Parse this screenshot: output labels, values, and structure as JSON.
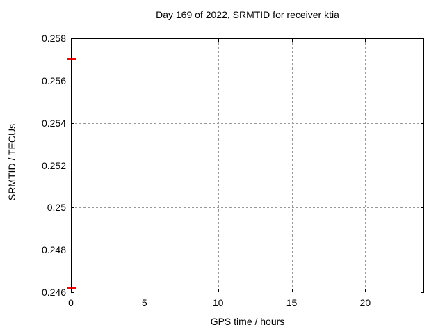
{
  "chart_data": {
    "type": "scatter",
    "title": "Day 169 of 2022, SRMTID for receiver ktia",
    "xlabel": "GPS time / hours",
    "ylabel": "SRMTID / TECUs",
    "xlim": [
      0,
      24
    ],
    "ylim": [
      0.246,
      0.258
    ],
    "xticks": {
      "values": [
        0,
        5,
        10,
        15,
        20
      ],
      "labels": [
        "0",
        "5",
        "10",
        "15",
        "20"
      ]
    },
    "yticks": {
      "values": [
        0.246,
        0.248,
        0.25,
        0.252,
        0.254,
        0.256,
        0.258
      ],
      "labels": [
        "0.246",
        "0.248",
        "0.25",
        "0.252",
        "0.254",
        "0.256",
        "0.258"
      ]
    },
    "grid": true,
    "legend_position": "none",
    "series": [
      {
        "name": "SRMTID",
        "color": "#ff0000",
        "marker": "horizontal-dash",
        "points": [
          {
            "x": 0,
            "y": 0.257
          },
          {
            "x": 0,
            "y": 0.2462
          }
        ]
      }
    ]
  },
  "colors": {
    "background": "#ffffff",
    "frame": "#000000",
    "grid": "#999999",
    "text": "#000000"
  }
}
